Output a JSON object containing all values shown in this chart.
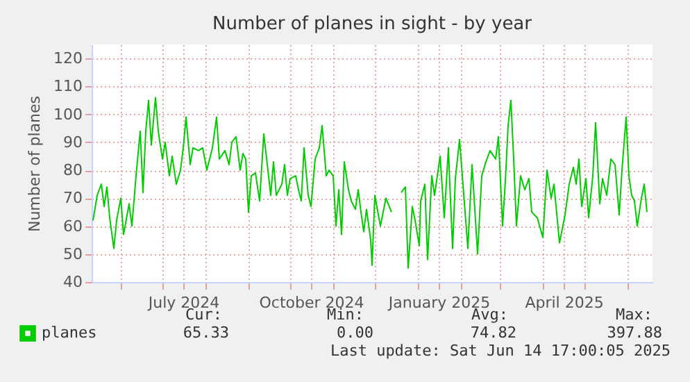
{
  "chart_data": {
    "type": "line",
    "title": "Number of planes in sight - by year",
    "ylabel": "Number of planes",
    "x": [
      "2024-05-12",
      "2024-05-15",
      "2024-05-18",
      "2024-05-20",
      "2024-05-22",
      "2024-05-24",
      "2024-05-27",
      "2024-05-29",
      "2024-06-01",
      "2024-06-03",
      "2024-06-07",
      "2024-06-09",
      "2024-06-12",
      "2024-06-15",
      "2024-06-17",
      "2024-06-19",
      "2024-06-21",
      "2024-06-23",
      "2024-06-26",
      "2024-06-28",
      "2024-07-01",
      "2024-07-03",
      "2024-07-06",
      "2024-07-08",
      "2024-07-11",
      "2024-07-14",
      "2024-07-16",
      "2024-07-18",
      "2024-07-21",
      "2024-07-23",
      "2024-07-27",
      "2024-07-30",
      "2024-08-02",
      "2024-08-06",
      "2024-08-09",
      "2024-08-11",
      "2024-08-15",
      "2024-08-18",
      "2024-08-20",
      "2024-08-23",
      "2024-08-26",
      "2024-08-28",
      "2024-08-30",
      "2024-09-01",
      "2024-09-03",
      "2024-09-06",
      "2024-09-09",
      "2024-09-12",
      "2024-09-15",
      "2024-09-17",
      "2024-09-19",
      "2024-09-21",
      "2024-09-25",
      "2024-09-27",
      "2024-09-29",
      "2024-10-01",
      "2024-10-05",
      "2024-10-07",
      "2024-10-09",
      "2024-10-11",
      "2024-10-14",
      "2024-10-16",
      "2024-10-19",
      "2024-10-22",
      "2024-10-24",
      "2024-10-27",
      "2024-10-29",
      "2024-11-01",
      "2024-11-03",
      "2024-11-05",
      "2024-11-07",
      "2024-11-09",
      "2024-11-12",
      "2024-11-14",
      "2024-11-17",
      "2024-11-19",
      "2024-11-21",
      "2024-11-23",
      "2024-11-25",
      "2024-11-28",
      "2024-11-29",
      "2024-12-01",
      "2024-12-05",
      "2024-12-09",
      "2024-12-13",
      "2024-12-16",
      "2024-12-20",
      "2024-12-23",
      "2024-12-25",
      "2024-12-28",
      "2024-12-30",
      "2025-01-02",
      "2025-01-03",
      "2025-01-06",
      "2025-01-08",
      "2025-01-11",
      "2025-01-13",
      "2025-01-17",
      "2025-01-20",
      "2025-01-23",
      "2025-01-24",
      "2025-01-26",
      "2025-01-28",
      "2025-01-31",
      "2025-02-02",
      "2025-02-06",
      "2025-02-09",
      "2025-02-13",
      "2025-02-16",
      "2025-02-19",
      "2025-02-22",
      "2025-02-26",
      "2025-02-28",
      "2025-03-03",
      "2025-03-05",
      "2025-03-07",
      "2025-03-09",
      "2025-03-11",
      "2025-03-13",
      "2025-03-16",
      "2025-03-19",
      "2025-03-22",
      "2025-03-24",
      "2025-03-28",
      "2025-04-01",
      "2025-04-04",
      "2025-04-07",
      "2025-04-09",
      "2025-04-13",
      "2025-04-17",
      "2025-04-20",
      "2025-04-23",
      "2025-04-25",
      "2025-04-27",
      "2025-04-29",
      "2025-05-02",
      "2025-05-04",
      "2025-05-07",
      "2025-05-09",
      "2025-05-12",
      "2025-05-14",
      "2025-05-17",
      "2025-05-20",
      "2025-05-23",
      "2025-05-26",
      "2025-05-28",
      "2025-05-31",
      "2025-06-02",
      "2025-06-04",
      "2025-06-06",
      "2025-06-08",
      "2025-06-11",
      "2025-06-13",
      "2025-06-15"
    ],
    "series": [
      {
        "name": "planes",
        "color": "#00cc00",
        "values": [
          62,
          71,
          75,
          67,
          74,
          63,
          52,
          62,
          70,
          57,
          68,
          60,
          78,
          94,
          72,
          94,
          105,
          89,
          106,
          94,
          84,
          90,
          78,
          85,
          75,
          80,
          88,
          99,
          82,
          88,
          87,
          88,
          80,
          88,
          99,
          84,
          87,
          82,
          90,
          92,
          80,
          86,
          84,
          65,
          78,
          79,
          69,
          93,
          80,
          71,
          83,
          71,
          75,
          82,
          71,
          77,
          78,
          73,
          69,
          88,
          71,
          67,
          84,
          88,
          96,
          78,
          80,
          78,
          60,
          73,
          57,
          83,
          73,
          69,
          66,
          73,
          65,
          58,
          66,
          55,
          46,
          71,
          60,
          70,
          65,
          null,
          72,
          74,
          45,
          67,
          62,
          53,
          69,
          75,
          48,
          78,
          71,
          85,
          63,
          88,
          75,
          52,
          77,
          91,
          78,
          52,
          82,
          50,
          78,
          83,
          87,
          84,
          92,
          60,
          76,
          96,
          105,
          84,
          60,
          78,
          73,
          77,
          65,
          63,
          56,
          80,
          70,
          75,
          54,
          64,
          75,
          81,
          75,
          84,
          67,
          77,
          63,
          78,
          97,
          68,
          77,
          71,
          84,
          82,
          64,
          80,
          99,
          78,
          71,
          69,
          60,
          70,
          75,
          65
        ]
      }
    ],
    "xlim": [
      "2024-05-11",
      "2025-06-19"
    ],
    "xticks": [
      {
        "value": "2024-06-01",
        "label": null
      },
      {
        "value": "2024-07-01",
        "label": null
      },
      {
        "value": "2024-07-16",
        "label": "July 2024"
      },
      {
        "value": "2024-08-01",
        "label": null
      },
      {
        "value": "2024-09-01",
        "label": null
      },
      {
        "value": "2024-10-01",
        "label": null
      },
      {
        "value": "2024-10-16",
        "label": "October 2024"
      },
      {
        "value": "2024-11-01",
        "label": null
      },
      {
        "value": "2024-12-01",
        "label": null
      },
      {
        "value": "2025-01-01",
        "label": null
      },
      {
        "value": "2025-01-16",
        "label": "January 2025"
      },
      {
        "value": "2025-02-01",
        "label": null
      },
      {
        "value": "2025-03-01",
        "label": null
      },
      {
        "value": "2025-04-01",
        "label": null
      },
      {
        "value": "2025-04-16",
        "label": "April 2025"
      },
      {
        "value": "2025-05-01",
        "label": null
      },
      {
        "value": "2025-06-01",
        "label": null
      }
    ],
    "ylim": [
      40,
      125
    ],
    "yticks": [
      40,
      50,
      60,
      70,
      80,
      90,
      100,
      110,
      120
    ],
    "grid": true,
    "legend": "bottom left",
    "line_style": "solid",
    "annotations": [
      "Cur:",
      "Min:",
      "Avg:",
      "Max:",
      "65.33",
      "0.00",
      "74.82",
      "397.88",
      "Last update: Sat Jun 14 17:00:05 2025"
    ]
  }
}
